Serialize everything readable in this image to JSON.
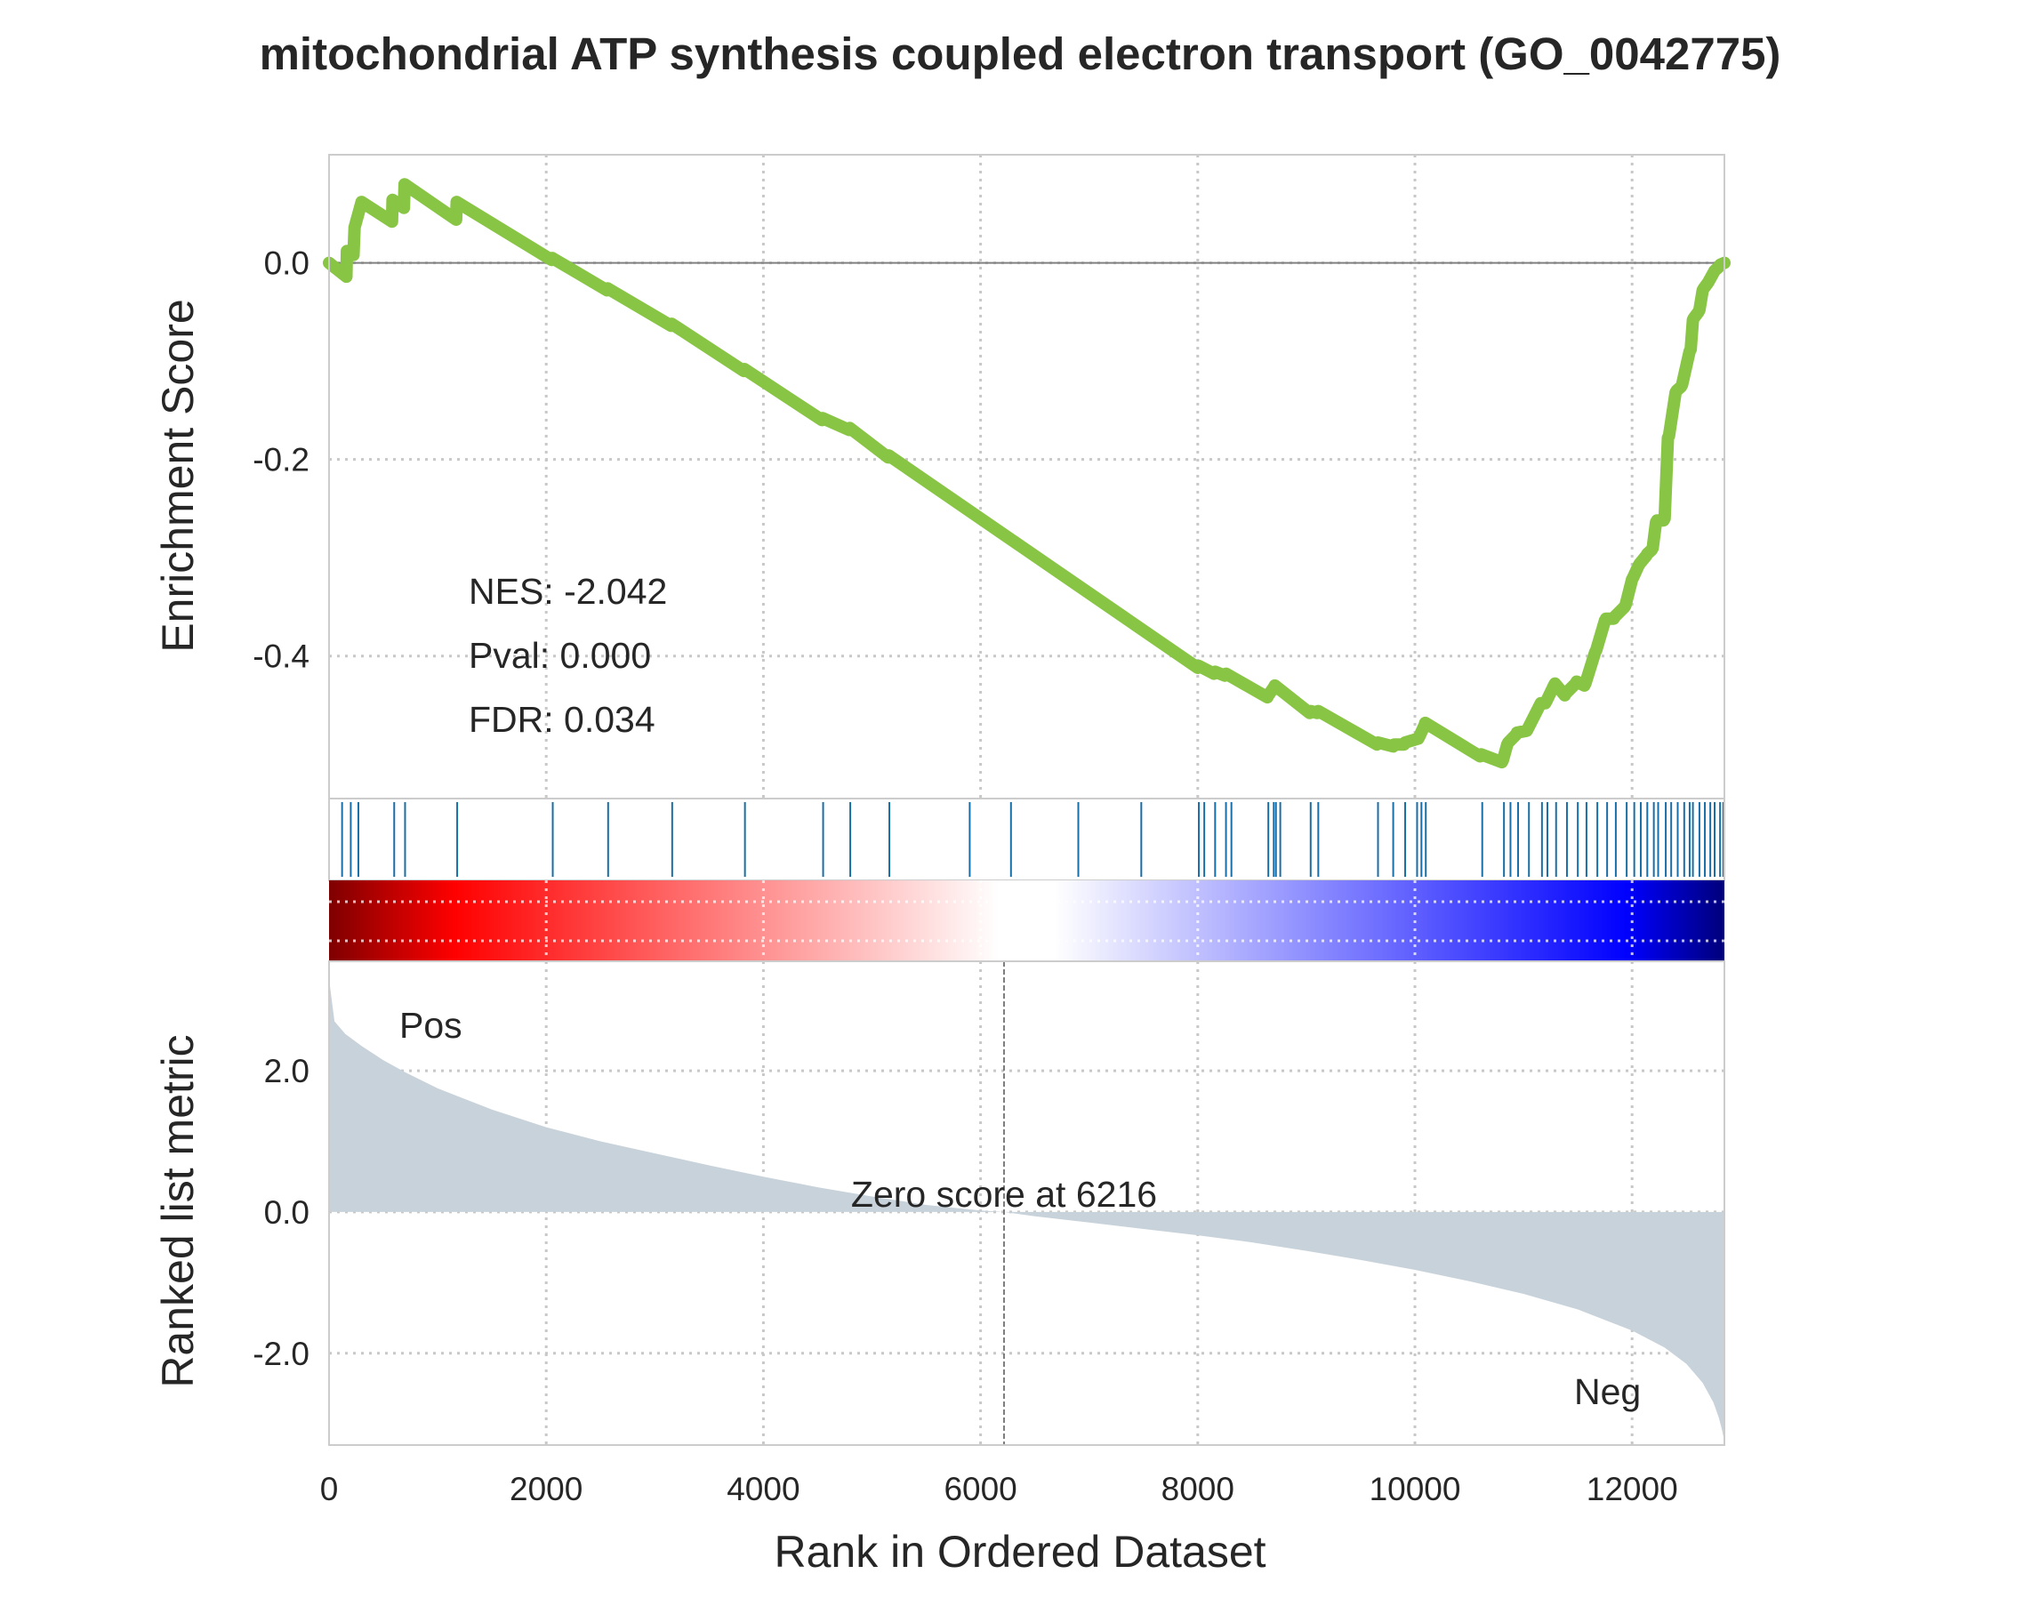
{
  "colors": {
    "es_line": "#88c544",
    "hit_line": "#1a6ea8",
    "ranked_fill": "#c8d2da",
    "pos_label": "#ff0000",
    "neg_label": "#0000ff",
    "grid": "#c8c8c8",
    "frame": "#cccccc"
  },
  "chart_data": {
    "type": "line",
    "title": "mitochondrial ATP synthesis coupled electron transport (GO_0042775)",
    "xlabel": "Rank in Ordered Dataset",
    "xlim": [
      0,
      12850
    ],
    "x_ticks": [
      "0",
      "2000",
      "4000",
      "6000",
      "8000",
      "10000",
      "12000"
    ],
    "x_tick_values": [
      0,
      2000,
      4000,
      6000,
      8000,
      10000,
      12000
    ],
    "grid": true,
    "enrichment_panel": {
      "ylabel": "Enrichment Score",
      "ylim": [
        -0.545,
        0.11
      ],
      "y_ticks": [
        "0.0",
        "-0.2",
        "-0.4"
      ],
      "y_tick_values": [
        0.0,
        -0.2,
        -0.4
      ],
      "series": [
        {
          "x": [
            0,
            160,
            165,
            225,
            235,
            300,
            580,
            585,
            690,
            695,
            1170,
            1175,
            2050,
            2055,
            2560,
            2565,
            3150,
            3155,
            3820,
            3825,
            4540,
            4545,
            4790,
            4795,
            5150,
            5155,
            8000,
            8010,
            8150,
            8160,
            8250,
            8260,
            8640,
            8650,
            8700,
            8710,
            9030,
            9040,
            9100,
            9110,
            9650,
            9660,
            9800,
            9810,
            9900,
            9910,
            10030,
            10040,
            10090,
            10095,
            10600,
            10610,
            10800,
            10810,
            10850,
            10860,
            10930,
            10940,
            11030,
            11040,
            11150,
            11160,
            11200,
            11210,
            11280,
            11290,
            11380,
            11390,
            11480,
            11490,
            11560,
            11570,
            11660,
            11670,
            11750,
            11760,
            11830,
            11840,
            11930,
            11940,
            12000,
            12010,
            12060,
            12070,
            12130,
            12140,
            12180,
            12190,
            12220,
            12230,
            12290,
            12300,
            12330,
            12340,
            12400,
            12410,
            12450,
            12460,
            12530,
            12540,
            12560,
            12570,
            12610,
            12620,
            12650,
            12660,
            12700,
            12710,
            12750,
            12760,
            12800,
            12810,
            12850
          ],
          "y": [
            0.0,
            -0.014,
            0.012,
            0.008,
            0.036,
            0.062,
            0.042,
            0.064,
            0.056,
            0.08,
            0.044,
            0.062,
            0.003,
            0.005,
            -0.028,
            -0.026,
            -0.064,
            -0.062,
            -0.11,
            -0.108,
            -0.16,
            -0.158,
            -0.17,
            -0.168,
            -0.198,
            -0.196,
            -0.412,
            -0.41,
            -0.418,
            -0.416,
            -0.42,
            -0.418,
            -0.442,
            -0.44,
            -0.432,
            -0.43,
            -0.458,
            -0.456,
            -0.458,
            -0.456,
            -0.49,
            -0.488,
            -0.492,
            -0.49,
            -0.49,
            -0.488,
            -0.484,
            -0.482,
            -0.47,
            -0.468,
            -0.502,
            -0.5,
            -0.508,
            -0.506,
            -0.49,
            -0.488,
            -0.48,
            -0.478,
            -0.476,
            -0.474,
            -0.45,
            -0.448,
            -0.448,
            -0.446,
            -0.43,
            -0.428,
            -0.44,
            -0.438,
            -0.428,
            -0.426,
            -0.43,
            -0.428,
            -0.396,
            -0.394,
            -0.364,
            -0.362,
            -0.362,
            -0.36,
            -0.35,
            -0.348,
            -0.322,
            -0.32,
            -0.308,
            -0.306,
            -0.298,
            -0.296,
            -0.292,
            -0.29,
            -0.264,
            -0.262,
            -0.262,
            -0.26,
            -0.178,
            -0.176,
            -0.132,
            -0.13,
            -0.126,
            -0.124,
            -0.09,
            -0.088,
            -0.058,
            -0.056,
            -0.05,
            -0.048,
            -0.028,
            -0.026,
            -0.02,
            -0.018,
            -0.01,
            -0.008,
            -0.004,
            -0.002,
            0.0
          ]
        }
      ],
      "annotations": [
        "NES: -2.042",
        "Pval: 0.000",
        "FDR: 0.034"
      ]
    },
    "hit_positions": [
      120,
      200,
      270,
      600,
      700,
      1180,
      2060,
      2570,
      3160,
      3830,
      4550,
      4800,
      5160,
      5900,
      6280,
      6900,
      7480,
      8010,
      8060,
      8160,
      8260,
      8310,
      8650,
      8700,
      8720,
      8760,
      9040,
      9110,
      9660,
      9800,
      9910,
      10020,
      10060,
      10100,
      10620,
      10820,
      10880,
      10950,
      11050,
      11170,
      11220,
      11300,
      11400,
      11500,
      11580,
      11680,
      11770,
      11850,
      11950,
      12020,
      12080,
      12140,
      12200,
      12240,
      12310,
      12360,
      12420,
      12480,
      12530,
      12560,
      12620,
      12670,
      12720,
      12760,
      12810,
      12840
    ],
    "ranked_panel": {
      "ylabel": "Ranked list metric",
      "ylim": [
        -3.3,
        3.55
      ],
      "y_ticks": [
        "2.0",
        "0.0",
        "-2.0"
      ],
      "y_tick_values": [
        2.0,
        0.0,
        -2.0
      ],
      "x": [
        0,
        50,
        150,
        300,
        500,
        700,
        1000,
        1500,
        2000,
        2500,
        3000,
        3500,
        4000,
        4500,
        5000,
        5500,
        6000,
        6216,
        6500,
        7000,
        7500,
        8000,
        8500,
        9000,
        9500,
        10000,
        10500,
        11000,
        11500,
        12000,
        12300,
        12500,
        12650,
        12750,
        12800,
        12830,
        12850
      ],
      "values": [
        3.3,
        2.7,
        2.52,
        2.35,
        2.15,
        1.98,
        1.75,
        1.45,
        1.2,
        1.0,
        0.83,
        0.66,
        0.5,
        0.35,
        0.22,
        0.1,
        0.02,
        0.0,
        -0.06,
        -0.15,
        -0.24,
        -0.33,
        -0.43,
        -0.55,
        -0.68,
        -0.82,
        -0.98,
        -1.16,
        -1.38,
        -1.68,
        -1.92,
        -2.15,
        -2.42,
        -2.7,
        -2.92,
        -3.1,
        -3.25
      ],
      "zero_cross_rank": 6216,
      "zero_label": "Zero score at 6216",
      "pos_label": "Pos",
      "neg_label": "Neg"
    }
  }
}
